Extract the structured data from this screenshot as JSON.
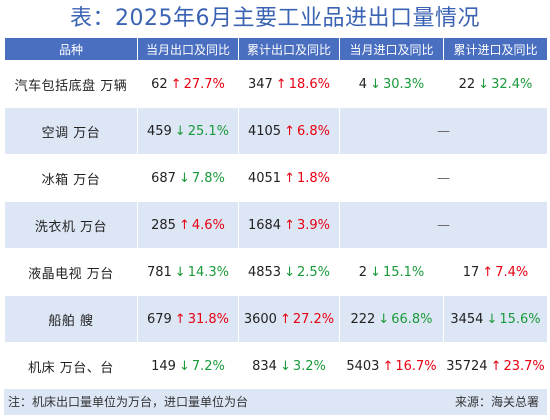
{
  "title": "表：2025年6月主要工业品进出口量情况",
  "columns": [
    "品种",
    "当月出口及同比",
    "累计出口及同比",
    "当月进口及同比",
    "累计进口及同比"
  ],
  "rows": [
    {
      "name": "汽车包括底盘 万辆",
      "cells": [
        {
          "value": "62",
          "dir": "up",
          "arrow": "↑",
          "pct": "27.7%"
        },
        {
          "value": "347",
          "dir": "up",
          "arrow": "↑",
          "pct": "18.6%"
        },
        {
          "value": "4",
          "dir": "down",
          "arrow": "↓",
          "pct": "30.3%"
        },
        {
          "value": "22",
          "dir": "down",
          "arrow": "↓",
          "pct": "32.4%"
        }
      ]
    },
    {
      "name": "空调 万台",
      "cells": [
        {
          "value": "459",
          "dir": "down",
          "arrow": "↓",
          "pct": "25.1%"
        },
        {
          "value": "4105",
          "dir": "up",
          "arrow": "↑",
          "pct": "6.8%"
        }
      ],
      "merged": "—"
    },
    {
      "name": "冰箱 万台",
      "cells": [
        {
          "value": "687",
          "dir": "down",
          "arrow": "↓",
          "pct": "7.8%"
        },
        {
          "value": "4051",
          "dir": "up",
          "arrow": "↑",
          "pct": "1.8%"
        }
      ],
      "merged": "—"
    },
    {
      "name": "洗衣机 万台",
      "cells": [
        {
          "value": "285",
          "dir": "up",
          "arrow": "↑",
          "pct": "4.6%"
        },
        {
          "value": "1684",
          "dir": "up",
          "arrow": "↑",
          "pct": "3.9%"
        }
      ],
      "merged": "—"
    },
    {
      "name": "液晶电视 万台",
      "cells": [
        {
          "value": "781",
          "dir": "down",
          "arrow": "↓",
          "pct": "14.3%"
        },
        {
          "value": "4853",
          "dir": "down",
          "arrow": "↓",
          "pct": "2.5%"
        },
        {
          "value": "2",
          "dir": "down",
          "arrow": "↓",
          "pct": "15.1%"
        },
        {
          "value": "17",
          "dir": "up",
          "arrow": "↑",
          "pct": "7.4%"
        }
      ]
    },
    {
      "name": "船舶 艘",
      "cells": [
        {
          "value": "679",
          "dir": "up",
          "arrow": "↑",
          "pct": "31.8%"
        },
        {
          "value": "3600",
          "dir": "up",
          "arrow": "↑",
          "pct": "27.2%"
        },
        {
          "value": "222",
          "dir": "down",
          "arrow": "↓",
          "pct": "66.8%"
        },
        {
          "value": "3454",
          "dir": "down",
          "arrow": "↓",
          "pct": "15.6%"
        }
      ]
    },
    {
      "name": "机床 万台、台",
      "cells": [
        {
          "value": "149",
          "dir": "down",
          "arrow": "↓",
          "pct": "7.2%"
        },
        {
          "value": "834",
          "dir": "down",
          "arrow": "↓",
          "pct": "3.2%"
        },
        {
          "value": "5403",
          "dir": "up",
          "arrow": "↑",
          "pct": "16.7%"
        },
        {
          "value": "35724",
          "dir": "up",
          "arrow": "↑",
          "pct": "23.7%"
        }
      ]
    }
  ],
  "footer": {
    "note": "注：机床出口量单位为万台，进口量单位为台",
    "source": "来源：海关总署"
  },
  "colors": {
    "up": "#e60012",
    "down": "#1a9a3a",
    "header": "#4a6fc1",
    "stripe": "#dde6f5",
    "title": "#3b63b3"
  }
}
